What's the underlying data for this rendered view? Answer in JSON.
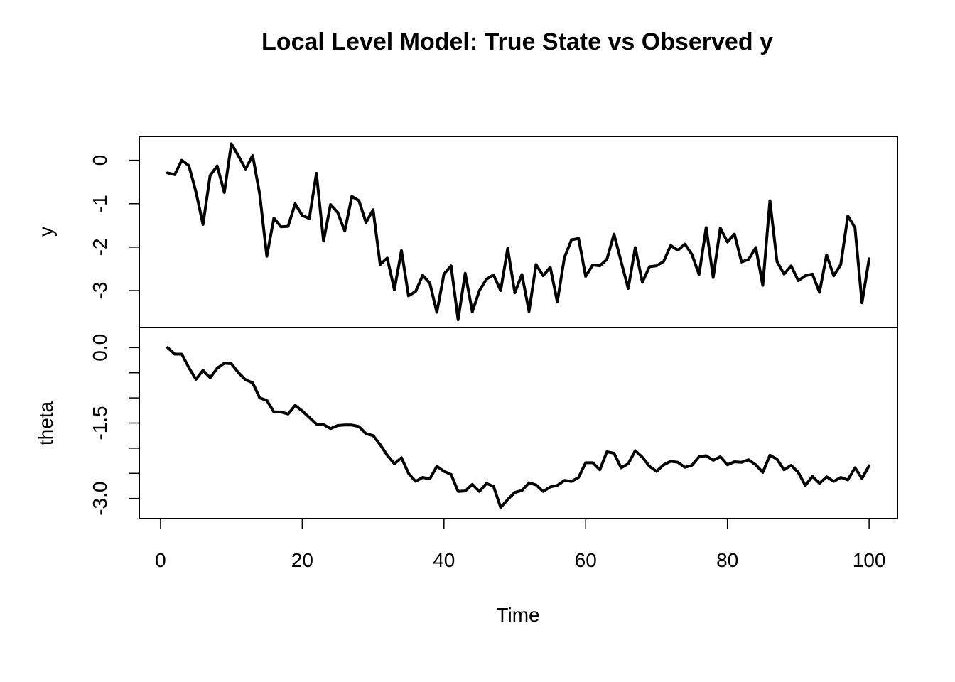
{
  "chart_data": {
    "type": "line",
    "title": "Local Level Model: True State vs Observed y",
    "xlabel": "Time",
    "x_ticks": [
      "0",
      "20",
      "40",
      "60",
      "80",
      "100"
    ],
    "x_tick_values": [
      0,
      20,
      40,
      60,
      80,
      100
    ],
    "xlim": [
      -3,
      104
    ],
    "x": [
      1,
      2,
      3,
      4,
      5,
      6,
      7,
      8,
      9,
      10,
      11,
      12,
      13,
      14,
      15,
      16,
      17,
      18,
      19,
      20,
      21,
      22,
      23,
      24,
      25,
      26,
      27,
      28,
      29,
      30,
      31,
      32,
      33,
      34,
      35,
      36,
      37,
      38,
      39,
      40,
      41,
      42,
      43,
      44,
      45,
      46,
      47,
      48,
      49,
      50,
      51,
      52,
      53,
      54,
      55,
      56,
      57,
      58,
      59,
      60,
      61,
      62,
      63,
      64,
      65,
      66,
      67,
      68,
      69,
      70,
      71,
      72,
      73,
      74,
      75,
      76,
      77,
      78,
      79,
      80,
      81,
      82,
      83,
      84,
      85,
      86,
      87,
      88,
      89,
      90,
      91,
      92,
      93,
      94,
      95,
      96,
      97,
      98,
      99,
      100
    ],
    "panels": [
      {
        "name": "y",
        "ylabel": "y",
        "ylim": [
          -3.85,
          0.55
        ],
        "y_ticks": [
          "0",
          "-1",
          "-2",
          "-3"
        ],
        "y_tick_values": [
          0,
          -1,
          -2,
          -3
        ],
        "values": [
          -0.29,
          -0.33,
          0.0,
          -0.12,
          -0.73,
          -1.48,
          -0.35,
          -0.13,
          -0.74,
          0.38,
          0.1,
          -0.2,
          0.11,
          -0.78,
          -2.21,
          -1.33,
          -1.53,
          -1.52,
          -1.0,
          -1.27,
          -1.34,
          -0.3,
          -1.86,
          -1.02,
          -1.2,
          -1.63,
          -0.83,
          -0.93,
          -1.43,
          -1.14,
          -2.4,
          -2.25,
          -2.98,
          -2.08,
          -3.12,
          -3.02,
          -2.65,
          -2.83,
          -3.5,
          -2.62,
          -2.43,
          -3.67,
          -2.6,
          -3.49,
          -3.0,
          -2.74,
          -2.64,
          -3.0,
          -2.03,
          -3.05,
          -2.63,
          -3.48,
          -2.4,
          -2.66,
          -2.46,
          -3.26,
          -2.24,
          -1.83,
          -1.8,
          -2.67,
          -2.41,
          -2.43,
          -2.28,
          -1.7,
          -2.33,
          -2.95,
          -2.01,
          -2.81,
          -2.45,
          -2.43,
          -2.33,
          -1.96,
          -2.07,
          -1.93,
          -2.17,
          -2.63,
          -1.55,
          -2.7,
          -1.56,
          -1.88,
          -1.7,
          -2.34,
          -2.28,
          -2.01,
          -2.88,
          -0.93,
          -2.33,
          -2.62,
          -2.43,
          -2.77,
          -2.66,
          -2.62,
          -3.04,
          -2.18,
          -2.66,
          -2.4,
          -1.28,
          -1.55,
          -3.28,
          -2.27
        ]
      },
      {
        "name": "theta",
        "ylabel": "theta",
        "ylim": [
          -3.4,
          0.4
        ],
        "y_ticks": [
          "0.0",
          "-1.5",
          "-3.0"
        ],
        "y_tick_values": [
          0,
          -1.5,
          -3.0
        ],
        "minor_tick_values": [
          -0.5,
          -1.0,
          -2.0,
          -2.5
        ],
        "values": [
          0.0,
          -0.13,
          -0.13,
          -0.4,
          -0.63,
          -0.45,
          -0.6,
          -0.41,
          -0.31,
          -0.32,
          -0.5,
          -0.64,
          -0.7,
          -1.0,
          -1.05,
          -1.28,
          -1.28,
          -1.32,
          -1.15,
          -1.26,
          -1.39,
          -1.52,
          -1.53,
          -1.61,
          -1.55,
          -1.54,
          -1.54,
          -1.57,
          -1.71,
          -1.75,
          -1.93,
          -2.14,
          -2.31,
          -2.19,
          -2.5,
          -2.66,
          -2.58,
          -2.61,
          -2.36,
          -2.46,
          -2.52,
          -2.86,
          -2.85,
          -2.72,
          -2.86,
          -2.7,
          -2.76,
          -3.18,
          -3.02,
          -2.88,
          -2.84,
          -2.69,
          -2.73,
          -2.86,
          -2.77,
          -2.74,
          -2.64,
          -2.66,
          -2.58,
          -2.29,
          -2.29,
          -2.43,
          -2.07,
          -2.1,
          -2.39,
          -2.31,
          -2.05,
          -2.18,
          -2.36,
          -2.46,
          -2.33,
          -2.26,
          -2.28,
          -2.38,
          -2.34,
          -2.17,
          -2.15,
          -2.24,
          -2.17,
          -2.33,
          -2.27,
          -2.28,
          -2.23,
          -2.33,
          -2.48,
          -2.14,
          -2.22,
          -2.43,
          -2.34,
          -2.48,
          -2.74,
          -2.56,
          -2.7,
          -2.57,
          -2.66,
          -2.58,
          -2.63,
          -2.39,
          -2.6,
          -2.35
        ]
      }
    ]
  }
}
